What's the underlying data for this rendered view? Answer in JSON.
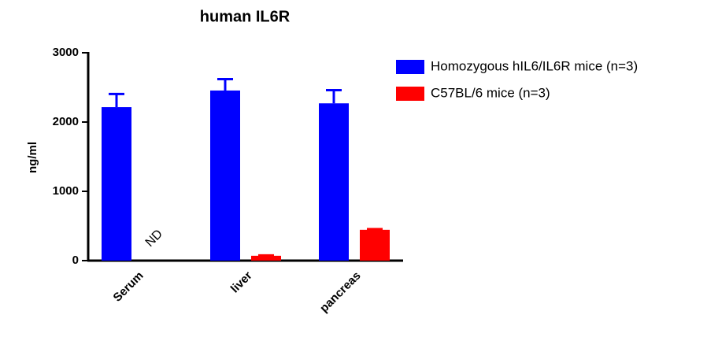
{
  "chart_data": {
    "type": "bar",
    "title": "human IL6R",
    "y_label": "ng/ml",
    "categories": [
      "Serum",
      "liver",
      "pancreas"
    ],
    "series": [
      {
        "name": "Homozygous hIL6/IL6R mice (n=3)",
        "color": "#0000ff",
        "values": [
          2215,
          2455,
          2270
        ],
        "errors": [
          190,
          165,
          190
        ]
      },
      {
        "name": "C57BL/6 mice (n=3)",
        "color": "#ff0000",
        "values": [
          null,
          70,
          445
        ],
        "errors": [
          null,
          5,
          10
        ]
      }
    ],
    "annotation": "ND",
    "ylim": [
      0,
      3000
    ],
    "yticks": [
      0,
      1000,
      2000,
      3000
    ],
    "grid": false,
    "legend": "right"
  }
}
